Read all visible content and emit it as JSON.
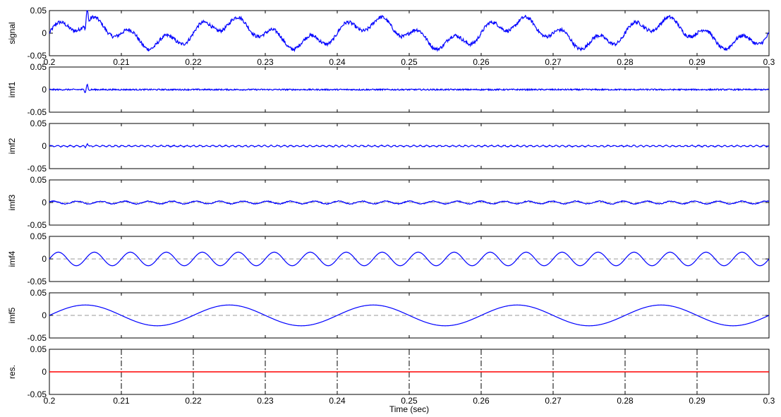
{
  "figure": {
    "xlabel": "Time (sec)",
    "x_ticks": [
      "0.2",
      "0.21",
      "0.22",
      "0.23",
      "0.24",
      "0.25",
      "0.26",
      "0.27",
      "0.28",
      "0.29",
      "0.3"
    ],
    "y_ticks": [
      "0.05",
      "0",
      "-0.05"
    ]
  },
  "chart_data": [
    {
      "type": "line",
      "ylabel": "signal",
      "xlim": [
        0.2,
        0.3
      ],
      "ylim": [
        -0.05,
        0.05
      ],
      "show_x_tick_labels": true,
      "zero_line": false,
      "color": "#0000ff",
      "components": [
        {
          "kind": "sine",
          "amplitude": 0.022,
          "period": 0.02,
          "phase": 0
        },
        {
          "kind": "sine",
          "amplitude": 0.015,
          "period": 0.005,
          "phase": 0
        },
        {
          "kind": "noise",
          "amplitude": 0.004
        },
        {
          "kind": "spike",
          "x": 0.2052,
          "amplitude": 0.03
        }
      ]
    },
    {
      "type": "line",
      "ylabel": "imf1",
      "xlim": [
        0.2,
        0.3
      ],
      "ylim": [
        -0.05,
        0.05
      ],
      "show_x_tick_labels": false,
      "zero_line": false,
      "color": "#0000ff",
      "components": [
        {
          "kind": "noise",
          "amplitude": 0.0015
        },
        {
          "kind": "spike",
          "x": 0.2052,
          "amplitude": 0.012
        }
      ]
    },
    {
      "type": "line",
      "ylabel": "imf2",
      "xlim": [
        0.2,
        0.3
      ],
      "ylim": [
        -0.05,
        0.05
      ],
      "show_x_tick_labels": false,
      "zero_line": false,
      "color": "#0000ff",
      "components": [
        {
          "kind": "sine",
          "amplitude": 0.0015,
          "period": 0.0009,
          "phase": 0
        },
        {
          "kind": "noise",
          "amplitude": 0.0008
        },
        {
          "kind": "spike",
          "x": 0.2052,
          "amplitude": 0.006
        }
      ]
    },
    {
      "type": "line",
      "ylabel": "imf3",
      "xlim": [
        0.2,
        0.3
      ],
      "ylim": [
        -0.05,
        0.05
      ],
      "show_x_tick_labels": false,
      "zero_line": true,
      "color": "#0000ff",
      "components": [
        {
          "kind": "sine",
          "amplitude": 0.003,
          "period": 0.0033,
          "phase": 0.5
        },
        {
          "kind": "noise",
          "amplitude": 0.001
        }
      ]
    },
    {
      "type": "line",
      "ylabel": "imf4",
      "xlim": [
        0.2,
        0.3
      ],
      "ylim": [
        -0.05,
        0.05
      ],
      "show_x_tick_labels": false,
      "zero_line": true,
      "color": "#0000ff",
      "components": [
        {
          "kind": "sine",
          "amplitude": 0.015,
          "period": 0.005,
          "phase": 0
        }
      ]
    },
    {
      "type": "line",
      "ylabel": "imf5",
      "xlim": [
        0.2,
        0.3
      ],
      "ylim": [
        -0.05,
        0.05
      ],
      "show_x_tick_labels": false,
      "zero_line": true,
      "color": "#0000ff",
      "components": [
        {
          "kind": "sine",
          "amplitude": 0.023,
          "period": 0.02,
          "phase": 0
        }
      ]
    },
    {
      "type": "line",
      "ylabel": "res.",
      "xlim": [
        0.2,
        0.3
      ],
      "ylim": [
        -0.05,
        0.05
      ],
      "show_x_tick_labels": true,
      "zero_line": false,
      "color": "#ff0000",
      "grid": "x-dashdot",
      "components": [
        {
          "kind": "constant",
          "value": 0
        }
      ]
    }
  ]
}
